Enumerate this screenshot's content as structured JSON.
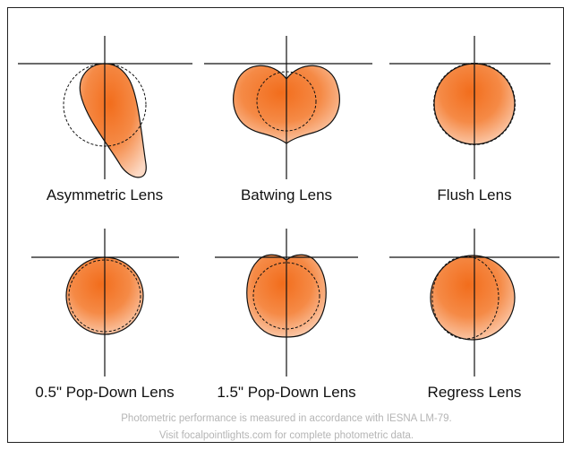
{
  "panels": [
    {
      "label": "Asymmetric Lens"
    },
    {
      "label": "Batwing Lens"
    },
    {
      "label": "Flush Lens"
    },
    {
      "label": "0.5\" Pop-Down Lens"
    },
    {
      "label": "1.5\" Pop-Down Lens"
    },
    {
      "label": "Regress Lens"
    }
  ],
  "footer": {
    "line1": "Photometric performance is measured in accordance with IESNA LM-79.",
    "line2": "Visit focalpointlights.com for complete photometric data."
  }
}
